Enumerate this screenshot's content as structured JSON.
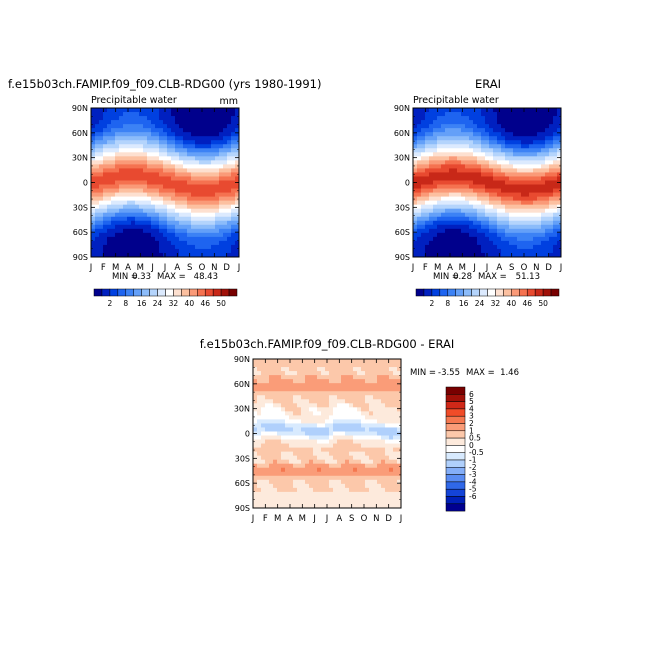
{
  "chart_data": [
    {
      "type": "heatmap",
      "title": "f.e15b03ch.FAMIP.f09_f09.CLB-RDG00 (yrs 1980-1991)",
      "subtitle": "Precipitable water",
      "units": "mm",
      "stats": {
        "min_label": "MIN =",
        "min": "0.33",
        "max_label": "MAX =",
        "max": "48.43"
      },
      "x_ticks": [
        "J",
        "F",
        "M",
        "A",
        "M",
        "J",
        "J",
        "A",
        "S",
        "O",
        "N",
        "D",
        "J"
      ],
      "y_ticks": [
        "90N",
        "60N",
        "30N",
        "0",
        "30S",
        "60S",
        "90S"
      ],
      "colorbar_labels": [
        "2",
        "8",
        "16",
        "24",
        "32",
        "40",
        "46",
        "50"
      ],
      "field_peak": 48.4
    },
    {
      "type": "heatmap",
      "title": "ERAI",
      "subtitle": "Precipitable water",
      "stats": {
        "min_label": "MIN =",
        "min": "0.28",
        "max_label": "MAX =",
        "max": "51.13"
      },
      "x_ticks": [
        "J",
        "F",
        "M",
        "A",
        "M",
        "J",
        "J",
        "A",
        "S",
        "O",
        "N",
        "D",
        "J"
      ],
      "y_ticks": [
        "90N",
        "60N",
        "30N",
        "0",
        "30S",
        "60S",
        "90S"
      ],
      "colorbar_labels": [
        "2",
        "8",
        "16",
        "24",
        "32",
        "40",
        "46",
        "50"
      ],
      "field_peak": 51.1
    },
    {
      "type": "heatmap",
      "title": "f.e15b03ch.FAMIP.f09_f09.CLB-RDG00 - ERAI",
      "stats": {
        "min_label": "MIN =",
        "min": "-3.55",
        "max_label": "MAX =",
        "max": "1.46"
      },
      "x_ticks": [
        "J",
        "F",
        "M",
        "A",
        "M",
        "J",
        "J",
        "A",
        "S",
        "O",
        "N",
        "D",
        "J"
      ],
      "y_ticks": [
        "90N",
        "60N",
        "30N",
        "0",
        "30S",
        "60S",
        "90S"
      ],
      "colorbar_labels": [
        "6",
        "5",
        "4",
        "3",
        "2",
        "1",
        "0.5",
        "0",
        "-0.5",
        "-1",
        "-2",
        "-3",
        "-4",
        "-5",
        "-6"
      ]
    }
  ],
  "colors": {
    "pw_scale": [
      "#00008c",
      "#0020c0",
      "#0040e0",
      "#1e64f0",
      "#3c82f5",
      "#64a0f8",
      "#8cbcfa",
      "#b4d4fc",
      "#dceafe",
      "#ffffff",
      "#fde0d0",
      "#fcc0a0",
      "#fa9a78",
      "#f57250",
      "#e84a30",
      "#c82818",
      "#a01008",
      "#780000"
    ],
    "diff_scale": [
      "#780000",
      "#a01008",
      "#d02818",
      "#f04c28",
      "#f57850",
      "#fa9c78",
      "#fcc8aa",
      "#fdeadc",
      "#ffffff",
      "#d8eafe",
      "#b0d0fc",
      "#84aef8",
      "#5a8cf2",
      "#3068e8",
      "#1444d8",
      "#0020b8",
      "#000090"
    ]
  }
}
